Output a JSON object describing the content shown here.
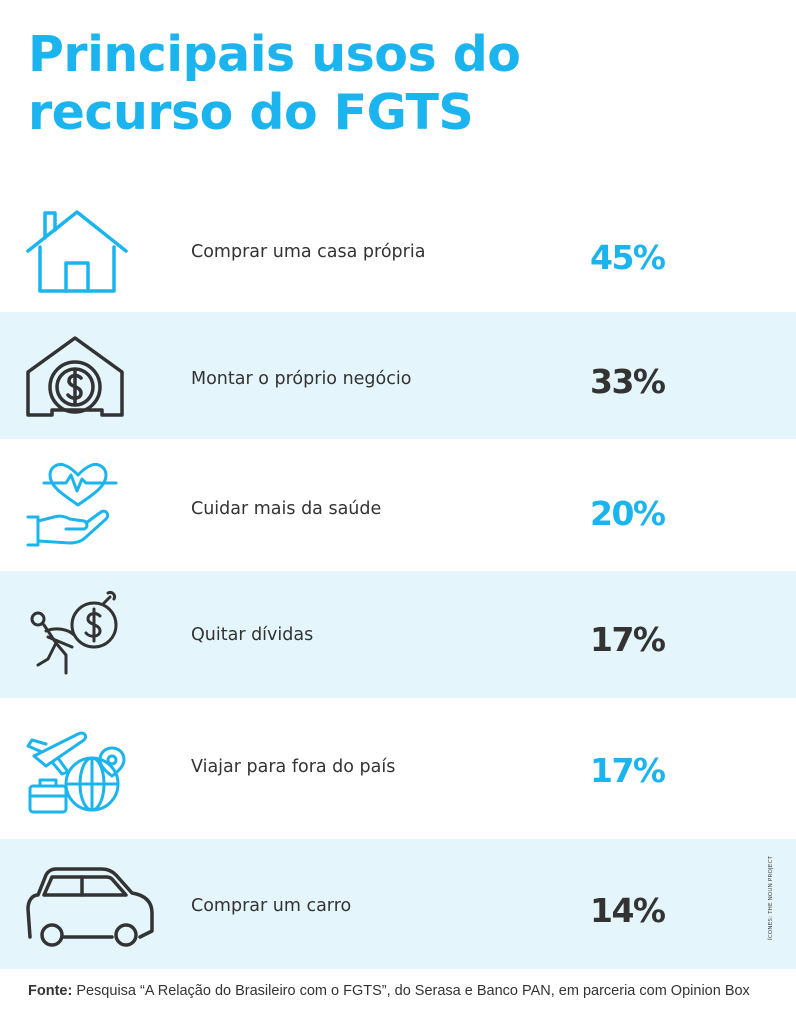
{
  "title": {
    "line1": "Principais usos do",
    "line2": "recurso do FGTS"
  },
  "colors": {
    "accent": "#1bb4ee",
    "dark": "#333333",
    "shade": "#e4f5fc"
  },
  "items": [
    {
      "label": "Comprar uma casa própria",
      "value": "45%",
      "icon": "house-icon",
      "value_color": "#1bb4ee",
      "icon_color": "#1bb4ee"
    },
    {
      "label": "Montar o próprio negócio",
      "value": "33%",
      "icon": "house-dollar-icon",
      "value_color": "#333333",
      "icon_color": "#333333"
    },
    {
      "label": "Cuidar mais da saúde",
      "value": "20%",
      "icon": "hand-heart-icon",
      "value_color": "#1bb4ee",
      "icon_color": "#1bb4ee"
    },
    {
      "label": "Quitar dívidas",
      "value": "17%",
      "icon": "debt-burden-icon",
      "value_color": "#333333",
      "icon_color": "#333333"
    },
    {
      "label": "Viajar para fora do país",
      "value": "17%",
      "icon": "travel-globe-icon",
      "value_color": "#1bb4ee",
      "icon_color": "#1bb4ee"
    },
    {
      "label": "Comprar um carro",
      "value": "14%",
      "icon": "car-icon",
      "value_color": "#333333",
      "icon_color": "#333333"
    }
  ],
  "credit": "ÍCONES: THE NOUN PROJECT",
  "source": {
    "prefix": "Fonte:",
    "text": " Pesquisa “A Relação do Brasileiro com o FGTS”, do Serasa e Banco PAN, em parceria com Opinion Box"
  }
}
